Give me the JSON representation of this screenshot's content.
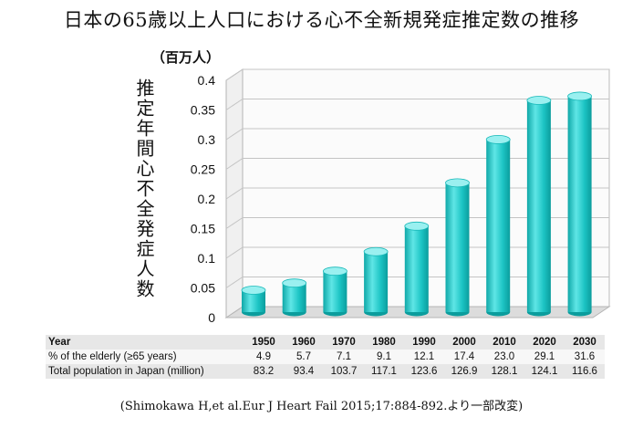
{
  "header": {
    "title": "日本の65歳以上人口における心不全新規発症推定数の推移",
    "unit": "（百万人）"
  },
  "chart_data": {
    "type": "bar",
    "title": "日本の65歳以上人口における心不全新規発症推定数の推移",
    "ylabel": "推定年間心不全発症人数",
    "yunit": "（百万人）",
    "categories": [
      "1950",
      "1960",
      "1970",
      "1980",
      "1990",
      "2000",
      "2010",
      "2020",
      "2030"
    ],
    "values": [
      0.04,
      0.052,
      0.072,
      0.105,
      0.148,
      0.221,
      0.294,
      0.36,
      0.367
    ],
    "ylim": [
      0,
      0.4
    ],
    "yticks": [
      "0",
      "0.05",
      "0.1",
      "0.15",
      "0.2",
      "0.25",
      "0.3",
      "0.35",
      "0.4"
    ],
    "grid": true,
    "bar_color": "#1fc6c6"
  },
  "table": {
    "rows": [
      {
        "label": "Year",
        "values": [
          "1950",
          "1960",
          "1970",
          "1980",
          "1990",
          "2000",
          "2010",
          "2020",
          "2030"
        ]
      },
      {
        "label": "% of the elderly (≥65 years)",
        "values": [
          "4.9",
          "5.7",
          "7.1",
          "9.1",
          "12.1",
          "17.4",
          "23.0",
          "29.1",
          "31.6"
        ]
      },
      {
        "label": "Total population in Japan (million)",
        "values": [
          "83.2",
          "93.4",
          "103.7",
          "117.1",
          "123.6",
          "126.9",
          "128.1",
          "124.1",
          "116.6"
        ]
      }
    ]
  },
  "source": "(Shimokawa H,et al.Eur J Heart Fail 2015;17:884-892.より一部改変)"
}
